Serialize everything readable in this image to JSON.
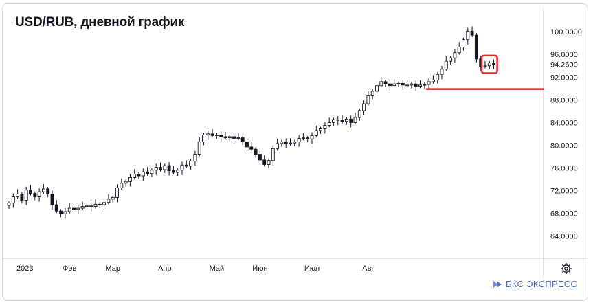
{
  "chart_data": {
    "type": "candlestick",
    "title": "USD/RUB, дневной график",
    "ylim": [
      60,
      103
    ],
    "y_ticks": [
      "100.0000",
      "96.0000",
      "92.0000",
      "88.0000",
      "84.0000",
      "80.0000",
      "76.0000",
      "72.0000",
      "68.0000",
      "64.0000"
    ],
    "last_price_label": "94.2600",
    "last_price": 94.26,
    "x_ticks": [
      "2023",
      "Фев",
      "Мар",
      "Апр",
      "Май",
      "Июн",
      "Июл",
      "Авг"
    ],
    "x_tick_sessions": [
      0,
      14,
      24,
      36,
      48,
      58,
      70,
      83
    ],
    "support_level": 89.9,
    "highlight": "last 3 sessions boxed in red",
    "colors": {
      "up": "#ffffff",
      "down": "#131722",
      "support": "#e0262b",
      "highlight": "#e0262b",
      "axis_text": "#131722"
    },
    "closes": [
      69.8,
      70.9,
      71.4,
      70.3,
      72.1,
      71.5,
      70.9,
      71.8,
      72.3,
      71.4,
      69.5,
      68.4,
      67.9,
      68.3,
      68.9,
      68.7,
      68.9,
      69.2,
      69.3,
      69.2,
      69.6,
      69.5,
      69.9,
      70.5,
      70.8,
      72.5,
      73.3,
      73.6,
      74.3,
      74.9,
      74.6,
      75.3,
      75.0,
      75.6,
      76.1,
      75.7,
      76.4,
      75.5,
      75.2,
      75.6,
      76.5,
      76.3,
      77.2,
      78.4,
      80.6,
      81.8,
      82.0,
      81.7,
      81.8,
      81.5,
      81.3,
      81.5,
      81.2,
      81.3,
      80.6,
      79.7,
      79.3,
      78.4,
      77.4,
      76.6,
      77.3,
      79.4,
      80.3,
      80.6,
      80.3,
      80.4,
      80.6,
      81.2,
      81.3,
      81.1,
      81.7,
      82.6,
      82.9,
      83.5,
      84.0,
      84.5,
      84.4,
      84.2,
      84.6,
      84.0,
      84.9,
      86.1,
      87.3,
      88.7,
      89.5,
      90.5,
      91.2,
      90.8,
      90.5,
      90.8,
      90.9,
      90.6,
      90.6,
      90.8,
      90.4,
      90.6,
      90.7,
      91.2,
      91.5,
      92.5,
      93.4,
      94.8,
      95.4,
      96.3,
      97.3,
      98.6,
      100.1,
      99.4,
      95.2,
      93.9,
      94.0,
      94.5,
      94.26
    ]
  },
  "footer": {
    "settings_icon": "gear-icon",
    "brand_icon": "bks-logo-icon",
    "brand_text": "БКС ЭКСПРЕСС"
  }
}
